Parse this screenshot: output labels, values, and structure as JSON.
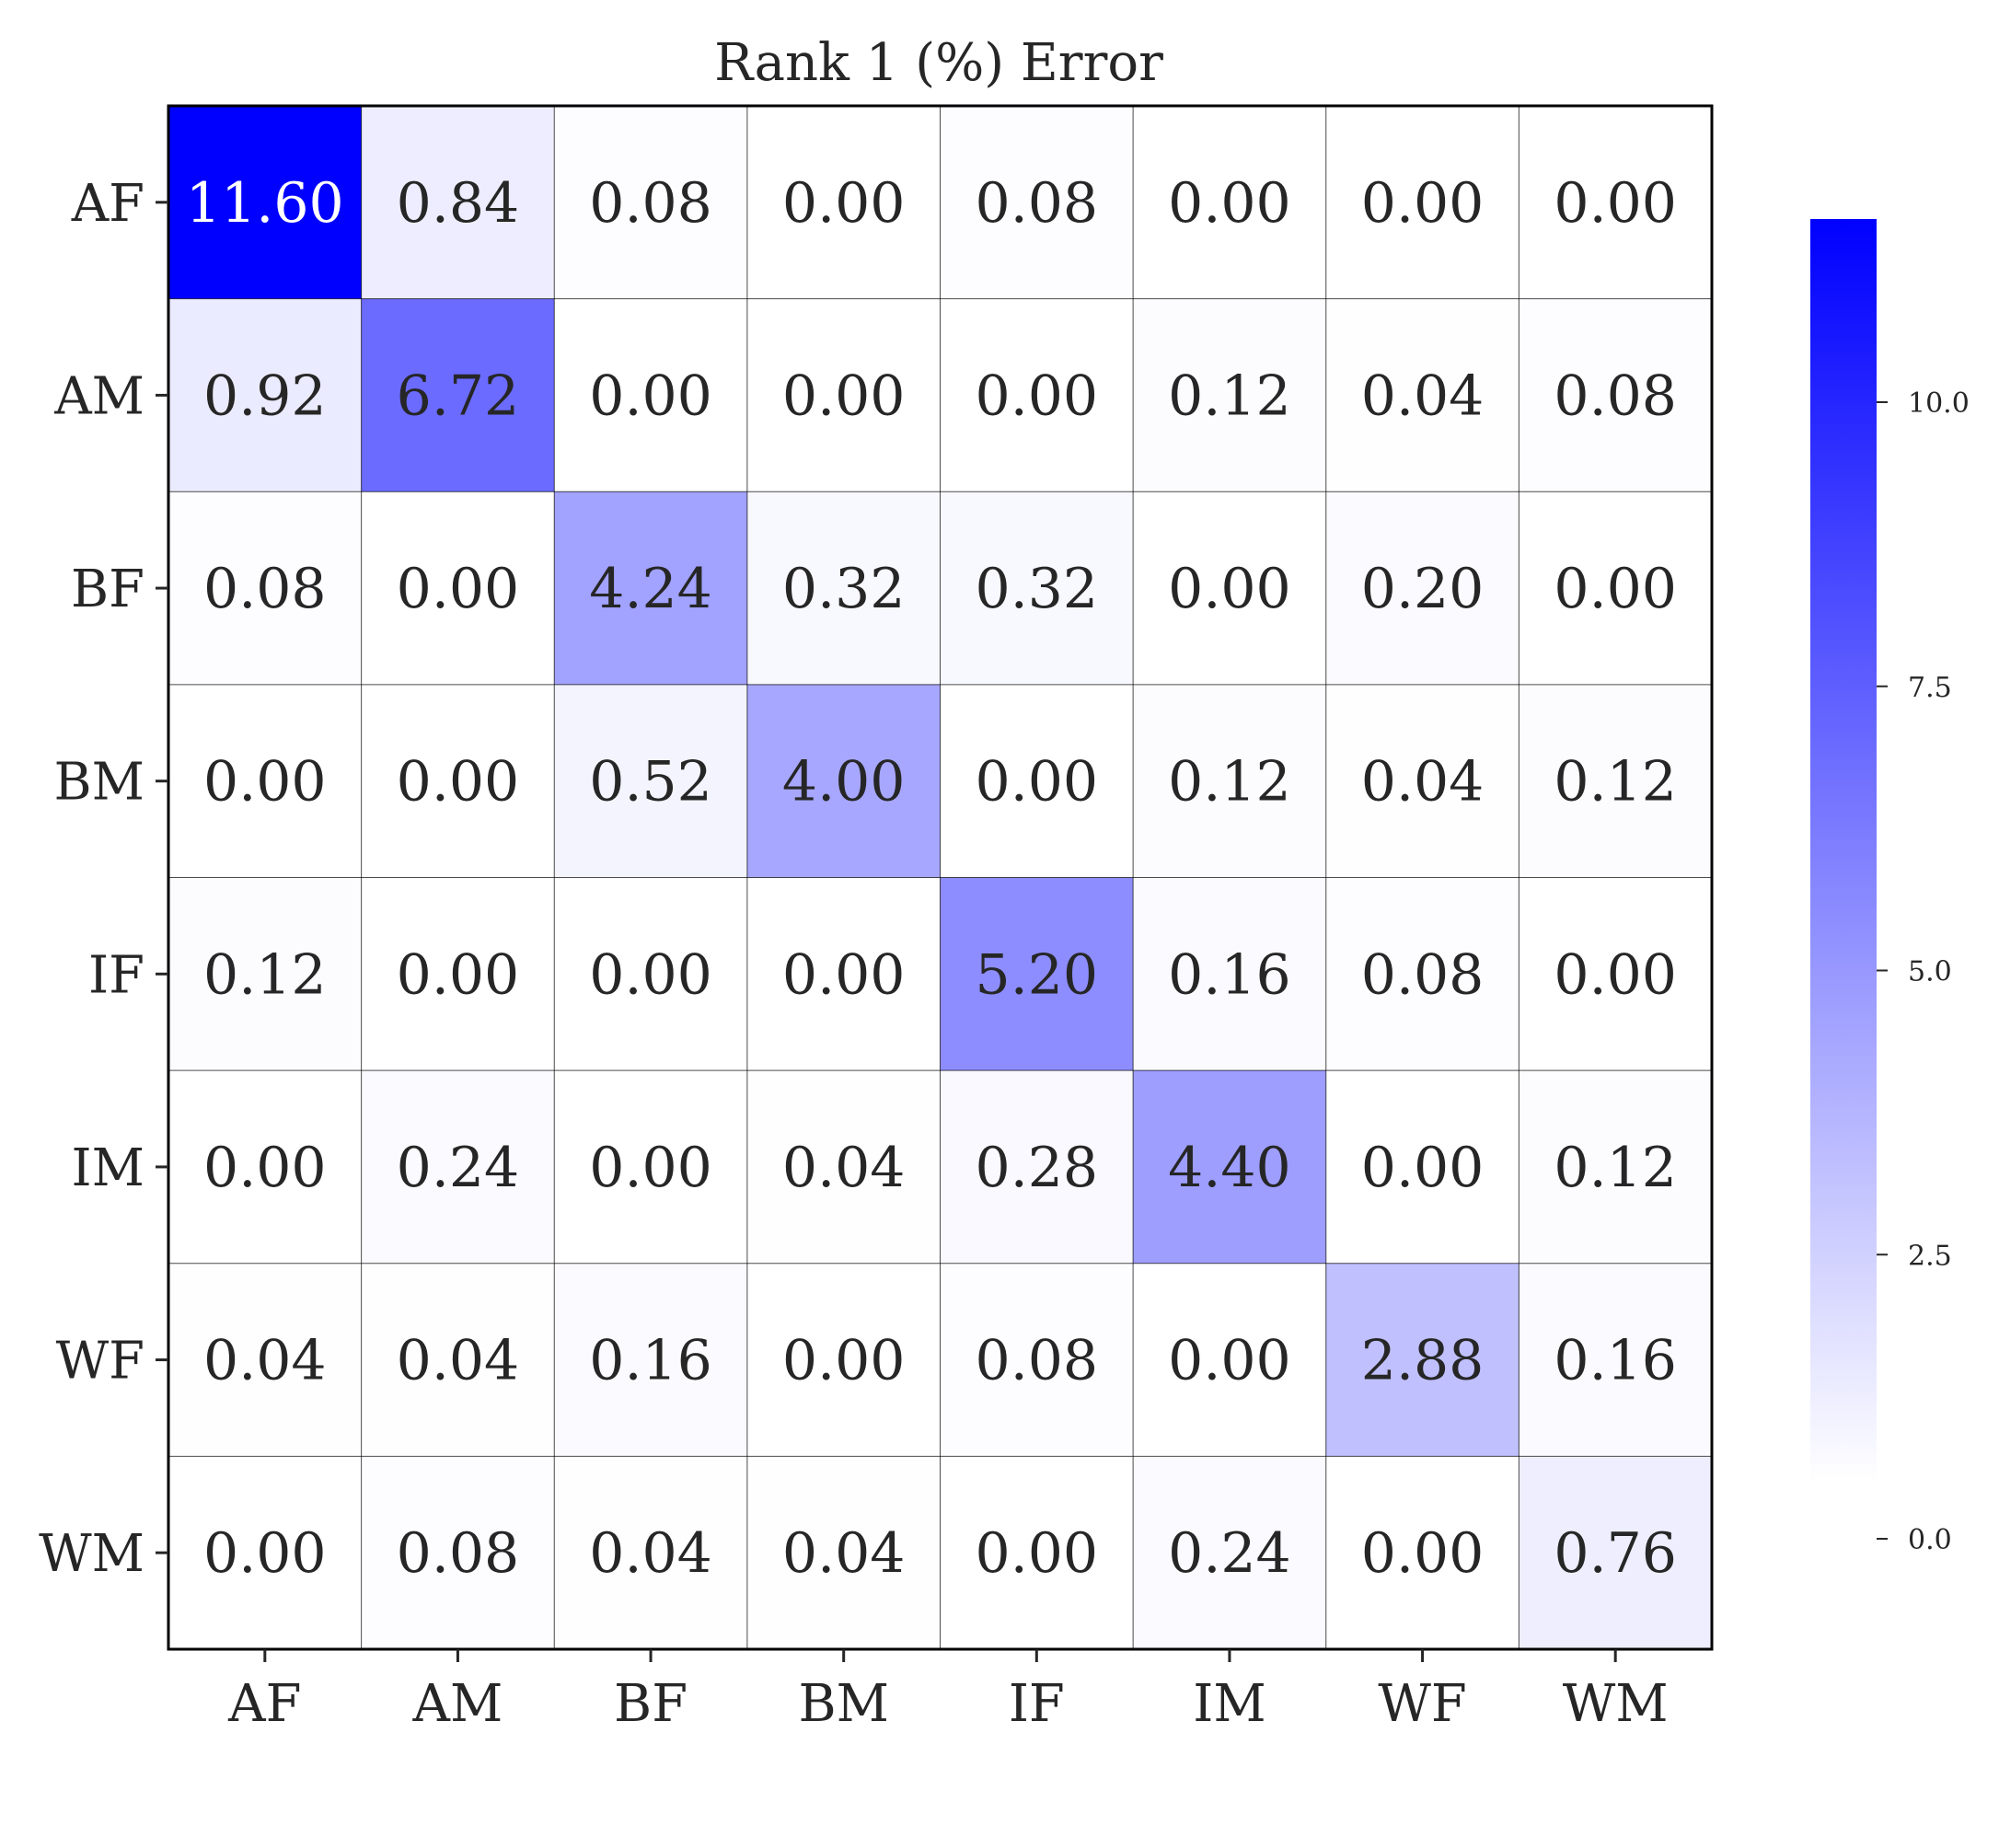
{
  "chart_data": {
    "type": "heatmap",
    "title": "Rank 1 (%) Error",
    "row_labels": [
      "AF",
      "AM",
      "BF",
      "BM",
      "IF",
      "IM",
      "WF",
      "WM"
    ],
    "col_labels": [
      "AF",
      "AM",
      "BF",
      "BM",
      "IF",
      "IM",
      "WF",
      "WM"
    ],
    "values": [
      [
        11.6,
        0.84,
        0.08,
        0.0,
        0.08,
        0.0,
        0.0,
        0.0
      ],
      [
        0.92,
        6.72,
        0.0,
        0.0,
        0.0,
        0.12,
        0.04,
        0.08
      ],
      [
        0.08,
        0.0,
        4.24,
        0.32,
        0.32,
        0.0,
        0.2,
        0.0
      ],
      [
        0.0,
        0.0,
        0.52,
        4.0,
        0.0,
        0.12,
        0.04,
        0.12
      ],
      [
        0.12,
        0.0,
        0.0,
        0.0,
        5.2,
        0.16,
        0.08,
        0.0
      ],
      [
        0.0,
        0.24,
        0.0,
        0.04,
        0.28,
        4.4,
        0.0,
        0.12
      ],
      [
        0.04,
        0.04,
        0.16,
        0.0,
        0.08,
        0.0,
        2.88,
        0.16
      ],
      [
        0.0,
        0.08,
        0.04,
        0.04,
        0.0,
        0.24,
        0.0,
        0.76
      ]
    ],
    "value_format_decimals": 2,
    "colormap": {
      "low": "#ffffff",
      "high": "#0000ff"
    },
    "vmin": 0.0,
    "vmax": 11.6,
    "colorbar": {
      "ticks": [
        0.0,
        2.5,
        5.0,
        7.5,
        10.0
      ],
      "tick_labels": [
        "0.0",
        "2.5",
        "5.0",
        "7.5",
        "10.0"
      ]
    },
    "grid": true,
    "text_color_dark": "#262626",
    "text_color_light": "#ffffff"
  }
}
